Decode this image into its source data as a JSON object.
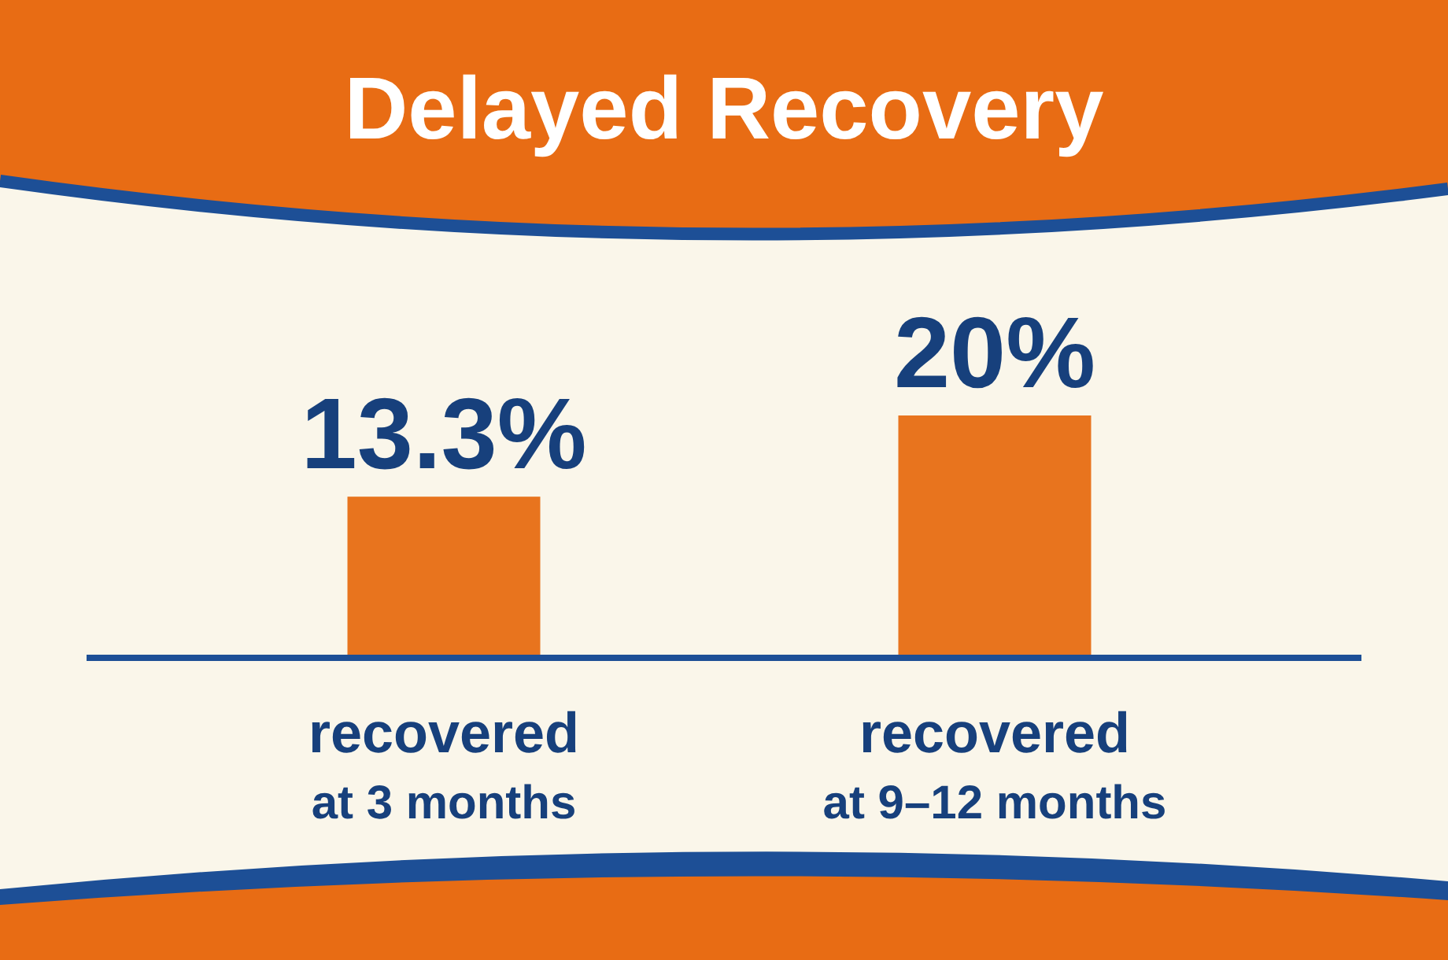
{
  "chart_data": {
    "type": "bar",
    "title": "Delayed Recovery",
    "categories": [
      "recovered\nat 3 months",
      "recovered\nat 9–12 months"
    ],
    "values": [
      13.3,
      20
    ],
    "color": "#e8741e",
    "data_labels": true,
    "value_labels": [
      "13.3%",
      "20%"
    ]
  }
}
